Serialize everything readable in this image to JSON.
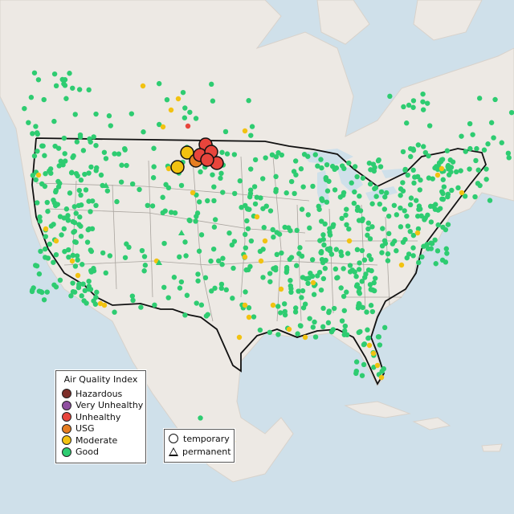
{
  "colors": {
    "Hazardous": "#7e2f2a",
    "Very Unhealthy": "#8f4fa0",
    "Unhealthy": "#e8453c",
    "USG": "#e67e22",
    "Moderate": "#f2c211",
    "Good": "#2ecc71"
  },
  "legend": {
    "title": "Air Quality Index",
    "items": [
      {
        "label": "Hazardous",
        "key": "Hazardous"
      },
      {
        "label": "Very Unhealthy",
        "key": "Very Unhealthy"
      },
      {
        "label": "Unhealthy",
        "key": "Unhealthy"
      },
      {
        "label": "USG",
        "key": "USG"
      },
      {
        "label": "Moderate",
        "key": "Moderate"
      },
      {
        "label": "Good",
        "key": "Good"
      }
    ],
    "types": [
      {
        "label": "temporary",
        "shape": "circle"
      },
      {
        "label": "permanent",
        "shape": "triangle"
      }
    ]
  }
}
